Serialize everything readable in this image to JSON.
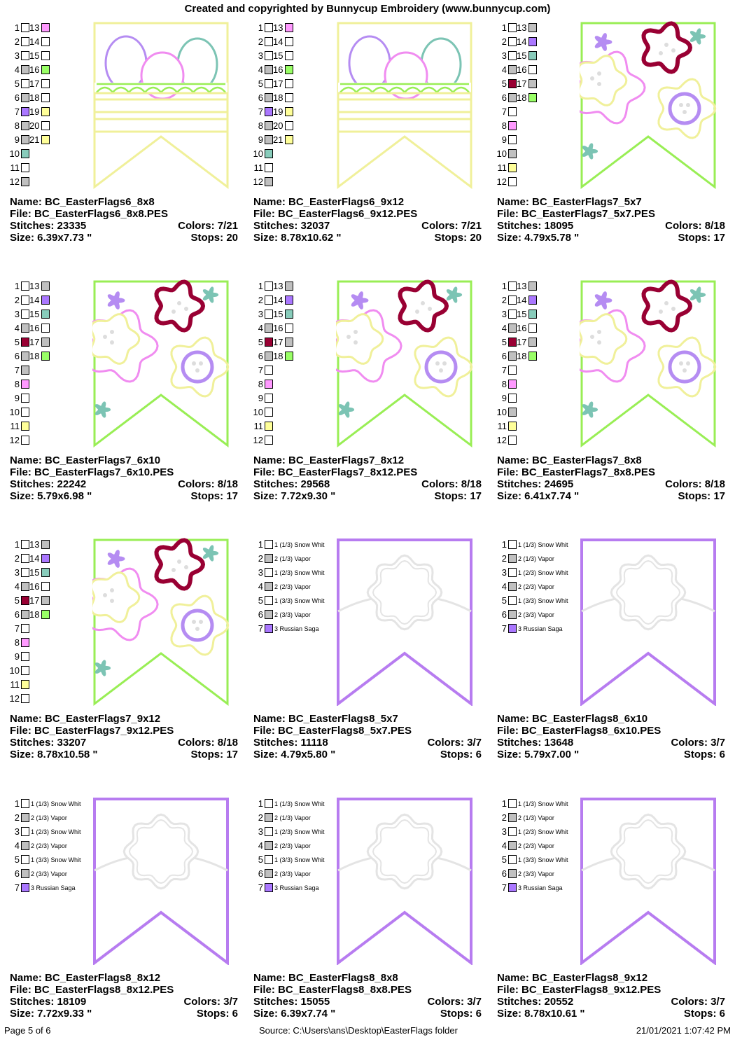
{
  "header": {
    "title": "Created and copyrighted by Bunnycup Embroidery (www.bunnycup.com)"
  },
  "colors": {
    "pink": "#ff99ff",
    "gray": "#c0c0c0",
    "white": "#ffffff",
    "lime": "#99ff66",
    "purple": "#aa77ff",
    "yellow": "#ffff99",
    "teal": "#88ccbb",
    "maroon": "#990033",
    "line_yellow": "#f0f09a",
    "line_green": "#99ee55",
    "line_purple": "#b77cf0",
    "egg_purple": "#b58cf2",
    "egg_pink": "#f08cf0",
    "egg_teal": "#7cc4b4",
    "cloud_white": "#e4e4e4"
  },
  "designs": [
    {
      "name_line": "Name: BC_EasterFlags6_8x8",
      "file_line": "File: BC_EasterFlags6_8x8.PES",
      "stitches_line": "Stitches: 23335",
      "colors_line": "Colors: 7/21",
      "size_line": "Size: 6.39x7.73 \"",
      "stops_line": "Stops: 20",
      "art": "eggs",
      "palette": [
        {
          "n": "1",
          "c": "white",
          "n2": "13",
          "c2": "pink"
        },
        {
          "n": "2",
          "c": "white",
          "n2": "14",
          "c2": "white"
        },
        {
          "n": "3",
          "c": "white",
          "n2": "15",
          "c2": "white"
        },
        {
          "n": "4",
          "c": "gray",
          "n2": "16",
          "c2": "lime"
        },
        {
          "n": "5",
          "c": "white",
          "n2": "17",
          "c2": "white"
        },
        {
          "n": "6",
          "c": "gray",
          "n2": "18",
          "c2": "white"
        },
        {
          "n": "7",
          "c": "purple",
          "n2": "19",
          "c2": "yellow"
        },
        {
          "n": "8",
          "c": "gray",
          "n2": "20",
          "c2": "white"
        },
        {
          "n": "9",
          "c": "gray",
          "n2": "21",
          "c2": "yellow"
        },
        {
          "n": "10",
          "c": "teal"
        },
        {
          "n": "11",
          "c": "white"
        },
        {
          "n": "12",
          "c": "gray"
        }
      ]
    },
    {
      "name_line": "Name: BC_EasterFlags6_9x12",
      "file_line": "File: BC_EasterFlags6_9x12.PES",
      "stitches_line": "Stitches: 32037",
      "colors_line": "Colors: 7/21",
      "size_line": "Size: 8.78x10.62 \"",
      "stops_line": "Stops: 20",
      "art": "eggs",
      "palette": [
        {
          "n": "1",
          "c": "white",
          "n2": "13",
          "c2": "pink"
        },
        {
          "n": "2",
          "c": "white",
          "n2": "14",
          "c2": "white"
        },
        {
          "n": "3",
          "c": "white",
          "n2": "15",
          "c2": "white"
        },
        {
          "n": "4",
          "c": "gray",
          "n2": "16",
          "c2": "lime"
        },
        {
          "n": "5",
          "c": "white",
          "n2": "17",
          "c2": "white"
        },
        {
          "n": "6",
          "c": "gray",
          "n2": "18",
          "c2": "white"
        },
        {
          "n": "7",
          "c": "purple",
          "n2": "19",
          "c2": "yellow"
        },
        {
          "n": "8",
          "c": "gray",
          "n2": "20",
          "c2": "white"
        },
        {
          "n": "9",
          "c": "gray",
          "n2": "21",
          "c2": "yellow"
        },
        {
          "n": "10",
          "c": "teal"
        },
        {
          "n": "11",
          "c": "white"
        },
        {
          "n": "12",
          "c": "gray"
        }
      ]
    },
    {
      "name_line": "Name: BC_EasterFlags7_5x7",
      "file_line": "File: BC_EasterFlags7_5x7.PES",
      "stitches_line": "Stitches: 18095",
      "colors_line": "Colors: 8/18",
      "size_line": "Size: 4.79x5.78 \"",
      "stops_line": "Stops: 17",
      "art": "flowers",
      "palette": [
        {
          "n": "1",
          "c": "white",
          "n2": "13",
          "c2": "gray"
        },
        {
          "n": "2",
          "c": "white",
          "n2": "14",
          "c2": "purple"
        },
        {
          "n": "3",
          "c": "white",
          "n2": "15",
          "c2": "teal"
        },
        {
          "n": "4",
          "c": "gray",
          "n2": "16",
          "c2": "white"
        },
        {
          "n": "5",
          "c": "maroon",
          "n2": "17",
          "c2": "gray"
        },
        {
          "n": "6",
          "c": "gray",
          "n2": "18",
          "c2": "lime"
        },
        {
          "n": "7",
          "c": "white"
        },
        {
          "n": "8",
          "c": "pink"
        },
        {
          "n": "9",
          "c": "white"
        },
        {
          "n": "10",
          "c": "gray"
        },
        {
          "n": "11",
          "c": "yellow"
        },
        {
          "n": "12",
          "c": "white"
        }
      ]
    },
    {
      "name_line": "Name: BC_EasterFlags7_6x10",
      "file_line": "File: BC_EasterFlags7_6x10.PES",
      "stitches_line": "Stitches: 22242",
      "colors_line": "Colors: 8/18",
      "size_line": "Size: 5.79x6.98 \"",
      "stops_line": "Stops: 17",
      "art": "flowers",
      "palette": [
        {
          "n": "1",
          "c": "white",
          "n2": "13",
          "c2": "gray"
        },
        {
          "n": "2",
          "c": "white",
          "n2": "14",
          "c2": "purple"
        },
        {
          "n": "3",
          "c": "white",
          "n2": "15",
          "c2": "teal"
        },
        {
          "n": "4",
          "c": "gray",
          "n2": "16",
          "c2": "white"
        },
        {
          "n": "5",
          "c": "maroon",
          "n2": "17",
          "c2": "gray"
        },
        {
          "n": "6",
          "c": "gray",
          "n2": "18",
          "c2": "lime"
        },
        {
          "n": "7",
          "c": "gray"
        },
        {
          "n": "8",
          "c": "pink"
        },
        {
          "n": "9",
          "c": "white"
        },
        {
          "n": "10",
          "c": "white"
        },
        {
          "n": "11",
          "c": "yellow"
        },
        {
          "n": "12",
          "c": "white"
        }
      ]
    },
    {
      "name_line": "Name: BC_EasterFlags7_8x12",
      "file_line": "File: BC_EasterFlags7_8x12.PES",
      "stitches_line": "Stitches: 29568",
      "colors_line": "Colors: 8/18",
      "size_line": "Size: 7.72x9.30 \"",
      "stops_line": "Stops: 17",
      "art": "flowers",
      "palette": [
        {
          "n": "1",
          "c": "white",
          "n2": "13",
          "c2": "gray"
        },
        {
          "n": "2",
          "c": "white",
          "n2": "14",
          "c2": "purple"
        },
        {
          "n": "3",
          "c": "white",
          "n2": "15",
          "c2": "teal"
        },
        {
          "n": "4",
          "c": "gray",
          "n2": "16",
          "c2": "white"
        },
        {
          "n": "5",
          "c": "maroon",
          "n2": "17",
          "c2": "gray"
        },
        {
          "n": "6",
          "c": "gray",
          "n2": "18",
          "c2": "lime"
        },
        {
          "n": "7",
          "c": "white"
        },
        {
          "n": "8",
          "c": "pink"
        },
        {
          "n": "9",
          "c": "white"
        },
        {
          "n": "10",
          "c": "white"
        },
        {
          "n": "11",
          "c": "yellow"
        },
        {
          "n": "12",
          "c": "white"
        }
      ]
    },
    {
      "name_line": "Name: BC_EasterFlags7_8x8",
      "file_line": "File: BC_EasterFlags7_8x8.PES",
      "stitches_line": "Stitches: 24695",
      "colors_line": "Colors: 8/18",
      "size_line": "Size: 6.41x7.74 \"",
      "stops_line": "Stops: 17",
      "art": "flowers",
      "palette": [
        {
          "n": "1",
          "c": "white",
          "n2": "13",
          "c2": "gray"
        },
        {
          "n": "2",
          "c": "white",
          "n2": "14",
          "c2": "purple"
        },
        {
          "n": "3",
          "c": "white",
          "n2": "15",
          "c2": "teal"
        },
        {
          "n": "4",
          "c": "gray",
          "n2": "16",
          "c2": "white"
        },
        {
          "n": "5",
          "c": "maroon",
          "n2": "17",
          "c2": "gray"
        },
        {
          "n": "6",
          "c": "gray",
          "n2": "18",
          "c2": "lime"
        },
        {
          "n": "7",
          "c": "white"
        },
        {
          "n": "8",
          "c": "pink"
        },
        {
          "n": "9",
          "c": "white"
        },
        {
          "n": "10",
          "c": "gray"
        },
        {
          "n": "11",
          "c": "yellow"
        },
        {
          "n": "12",
          "c": "white"
        }
      ]
    },
    {
      "name_line": "Name: BC_EasterFlags7_9x12",
      "file_line": "File: BC_EasterFlags7_9x12.PES",
      "stitches_line": "Stitches: 33207",
      "colors_line": "Colors: 8/18",
      "size_line": "Size: 8.78x10.58 \"",
      "stops_line": "Stops: 17",
      "art": "flowers",
      "palette": [
        {
          "n": "1",
          "c": "white",
          "n2": "13",
          "c2": "gray"
        },
        {
          "n": "2",
          "c": "white",
          "n2": "14",
          "c2": "purple"
        },
        {
          "n": "3",
          "c": "white",
          "n2": "15",
          "c2": "teal"
        },
        {
          "n": "4",
          "c": "gray",
          "n2": "16",
          "c2": "white"
        },
        {
          "n": "5",
          "c": "maroon",
          "n2": "17",
          "c2": "gray"
        },
        {
          "n": "6",
          "c": "gray",
          "n2": "18",
          "c2": "lime"
        },
        {
          "n": "7",
          "c": "white"
        },
        {
          "n": "8",
          "c": "pink"
        },
        {
          "n": "9",
          "c": "white"
        },
        {
          "n": "10",
          "c": "white"
        },
        {
          "n": "11",
          "c": "yellow"
        },
        {
          "n": "12",
          "c": "white"
        }
      ]
    },
    {
      "name_line": "Name: BC_EasterFlags8_5x7",
      "file_line": "File: BC_EasterFlags8_5x7.PES",
      "stitches_line": "Stitches: 11118",
      "colors_line": "Colors: 3/7",
      "size_line": "Size: 4.79x5.80 \"",
      "stops_line": "Stops: 6",
      "art": "cloud",
      "palette": [
        {
          "n": "1",
          "c": "white",
          "l": "1 (1/3) Snow Whit"
        },
        {
          "n": "2",
          "c": "gray",
          "l": "2 (1/3) Vapor"
        },
        {
          "n": "3",
          "c": "white",
          "l": "1 (2/3) Snow Whit"
        },
        {
          "n": "4",
          "c": "gray",
          "l": "2 (2/3) Vapor"
        },
        {
          "n": "5",
          "c": "white",
          "l": "1 (3/3) Snow Whit"
        },
        {
          "n": "6",
          "c": "gray",
          "l": "2 (3/3) Vapor"
        },
        {
          "n": "7",
          "c": "purple",
          "l": "3 Russian Saga"
        }
      ]
    },
    {
      "name_line": "Name: BC_EasterFlags8_6x10",
      "file_line": "File: BC_EasterFlags8_6x10.PES",
      "stitches_line": "Stitches: 13648",
      "colors_line": "Colors: 3/7",
      "size_line": "Size: 5.79x7.00 \"",
      "stops_line": "Stops: 6",
      "art": "cloud",
      "palette": [
        {
          "n": "1",
          "c": "white",
          "l": "1 (1/3) Snow Whit"
        },
        {
          "n": "2",
          "c": "gray",
          "l": "2 (1/3) Vapor"
        },
        {
          "n": "3",
          "c": "white",
          "l": "1 (2/3) Snow Whit"
        },
        {
          "n": "4",
          "c": "gray",
          "l": "2 (2/3) Vapor"
        },
        {
          "n": "5",
          "c": "white",
          "l": "1 (3/3) Snow Whit"
        },
        {
          "n": "6",
          "c": "gray",
          "l": "2 (3/3) Vapor"
        },
        {
          "n": "7",
          "c": "purple",
          "l": "3 Russian Saga"
        }
      ]
    },
    {
      "name_line": "Name: BC_EasterFlags8_8x12",
      "file_line": "File: BC_EasterFlags8_8x12.PES",
      "stitches_line": "Stitches: 18109",
      "colors_line": "Colors: 3/7",
      "size_line": "Size: 7.72x9.33 \"",
      "stops_line": "Stops: 6",
      "art": "cloud",
      "palette": [
        {
          "n": "1",
          "c": "white",
          "l": "1 (1/3) Snow Whit"
        },
        {
          "n": "2",
          "c": "gray",
          "l": "2 (1/3) Vapor"
        },
        {
          "n": "3",
          "c": "white",
          "l": "1 (2/3) Snow Whit"
        },
        {
          "n": "4",
          "c": "gray",
          "l": "2 (2/3) Vapor"
        },
        {
          "n": "5",
          "c": "white",
          "l": "1 (3/3) Snow Whit"
        },
        {
          "n": "6",
          "c": "gray",
          "l": "2 (3/3) Vapor"
        },
        {
          "n": "7",
          "c": "purple",
          "l": "3 Russian Saga"
        }
      ]
    },
    {
      "name_line": "Name: BC_EasterFlags8_8x8",
      "file_line": "File: BC_EasterFlags8_8x8.PES",
      "stitches_line": "Stitches: 15055",
      "colors_line": "Colors: 3/7",
      "size_line": "Size: 6.39x7.74 \"",
      "stops_line": "Stops: 6",
      "art": "cloud",
      "palette": [
        {
          "n": "1",
          "c": "white",
          "l": "1 (1/3) Snow Whit"
        },
        {
          "n": "2",
          "c": "gray",
          "l": "2 (1/3) Vapor"
        },
        {
          "n": "3",
          "c": "white",
          "l": "1 (2/3) Snow Whit"
        },
        {
          "n": "4",
          "c": "gray",
          "l": "2 (2/3) Vapor"
        },
        {
          "n": "5",
          "c": "white",
          "l": "1 (3/3) Snow Whit"
        },
        {
          "n": "6",
          "c": "gray",
          "l": "2 (3/3) Vapor"
        },
        {
          "n": "7",
          "c": "purple",
          "l": "3 Russian Saga"
        }
      ]
    },
    {
      "name_line": "Name: BC_EasterFlags8_9x12",
      "file_line": "File: BC_EasterFlags8_9x12.PES",
      "stitches_line": "Stitches: 20552",
      "colors_line": "Colors: 3/7",
      "size_line": "Size: 8.78x10.61 \"",
      "stops_line": "Stops: 6",
      "art": "cloud",
      "palette": [
        {
          "n": "1",
          "c": "white",
          "l": "1 (1/3) Snow Whit"
        },
        {
          "n": "2",
          "c": "gray",
          "l": "2 (1/3) Vapor"
        },
        {
          "n": "3",
          "c": "white",
          "l": "1 (2/3) Snow Whit"
        },
        {
          "n": "4",
          "c": "gray",
          "l": "2 (2/3) Vapor"
        },
        {
          "n": "5",
          "c": "white",
          "l": "1 (3/3) Snow Whit"
        },
        {
          "n": "6",
          "c": "gray",
          "l": "2 (3/3) Vapor"
        },
        {
          "n": "7",
          "c": "purple",
          "l": "3 Russian Saga"
        }
      ]
    }
  ],
  "footer": {
    "page": "Page 5 of 6",
    "source": "Source: C:\\Users\\ans\\Desktop\\EasterFlags folder",
    "timestamp": "21/01/2021 1:07:42 PM"
  }
}
